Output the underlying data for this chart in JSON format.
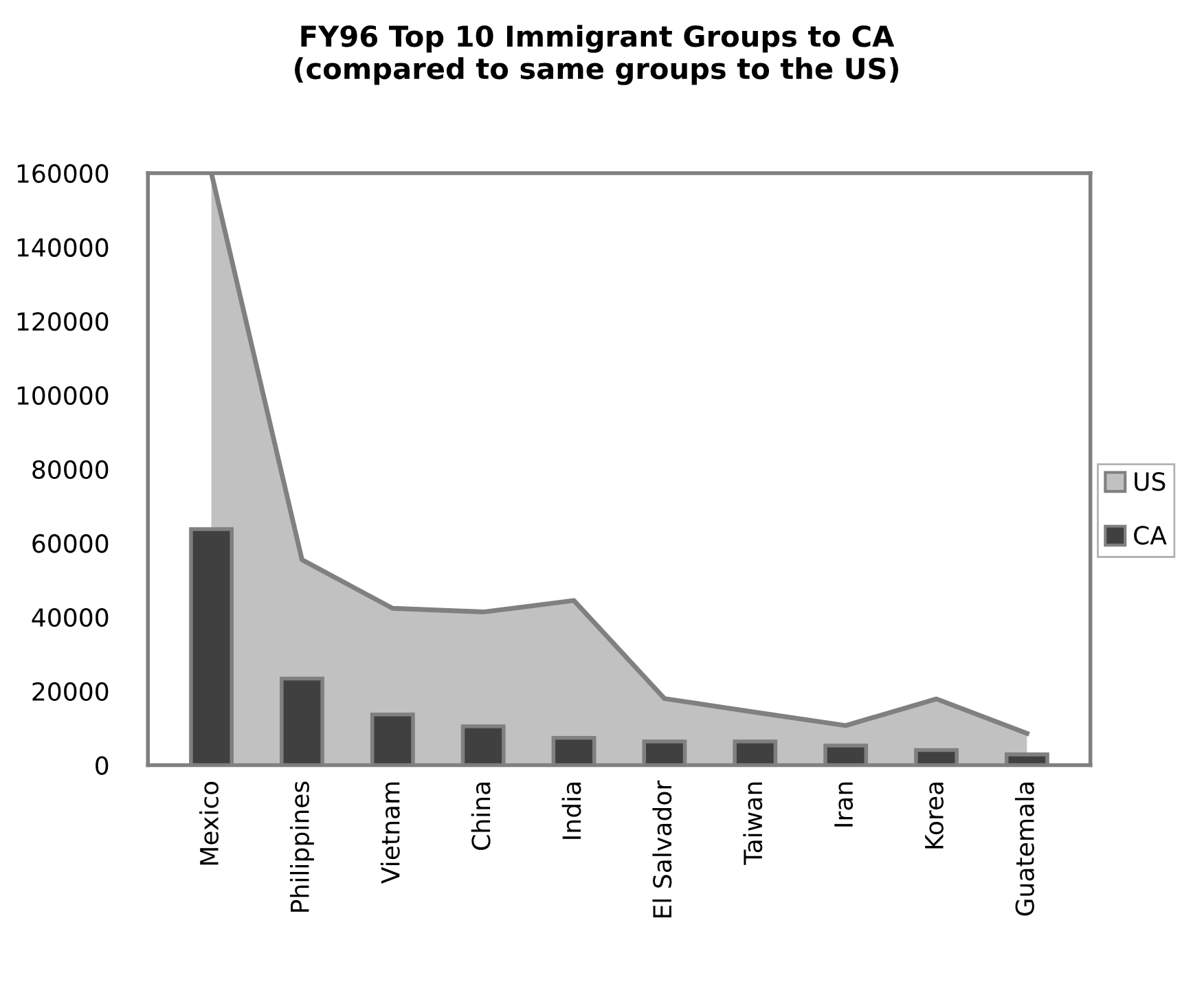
{
  "chart_data": {
    "type": "bar",
    "title": "FY96 Top 10 Immigrant Groups to CA\n(compared to same groups to the US)",
    "categories": [
      "Mexico",
      "Philippines",
      "Vietnam",
      "China",
      "India",
      "El Salvador",
      "Taiwan",
      "Iran",
      "Korea",
      "Guatemala"
    ],
    "series": [
      {
        "name": "US",
        "type": "area",
        "color": "#c0c1c0",
        "values": [
          160000,
          55500,
          42400,
          41400,
          44500,
          18000,
          14300,
          10700,
          17900,
          8600
        ]
      },
      {
        "name": "CA",
        "color": "#404040",
        "values": [
          63800,
          23400,
          13700,
          10500,
          7400,
          6400,
          6400,
          5300,
          4100,
          2900
        ]
      }
    ],
    "ylim": [
      0,
      160000
    ],
    "yticks": [
      0,
      20000,
      40000,
      60000,
      80000,
      100000,
      120000,
      140000,
      160000
    ],
    "grid": false,
    "legend": "right"
  }
}
